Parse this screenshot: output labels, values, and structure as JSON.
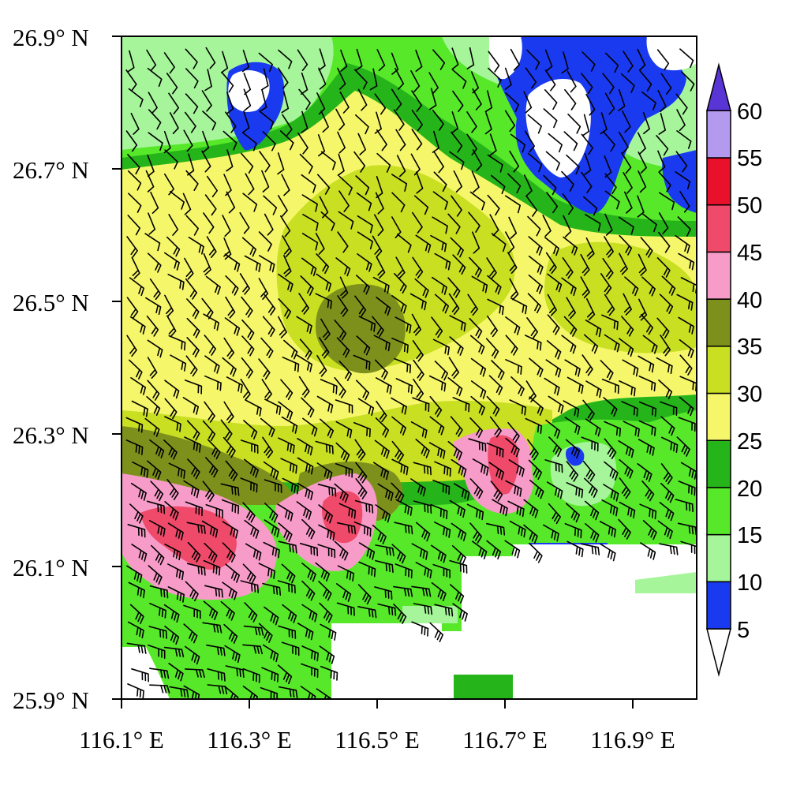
{
  "map": {
    "lat_labels": [
      "26.9° N",
      "26.7° N",
      "26.5° N",
      "26.3° N",
      "26.1° N",
      "25.9° N"
    ],
    "lon_labels": [
      "116.1° E",
      "116.3° E",
      "116.5° E",
      "116.7° E",
      "116.9° E"
    ],
    "lat_range": [
      25.9,
      26.9
    ],
    "lon_range": [
      116.1,
      117.0
    ],
    "field": "color-filled contours with wind barbs overlay",
    "barb_color": "#000000",
    "missing_color": "#ffffff"
  },
  "colorbar": {
    "labels": [
      "5",
      "10",
      "15",
      "20",
      "25",
      "30",
      "35",
      "40",
      "45",
      "50",
      "55",
      "60"
    ],
    "levels": [
      5,
      10,
      15,
      20,
      25,
      30,
      35,
      40,
      45,
      50,
      55,
      60
    ],
    "colors": [
      "#ffffff",
      "#1a3af0",
      "#a6f59a",
      "#57e82a",
      "#25b51a",
      "#f6f66a",
      "#c8df22",
      "#7e901c",
      "#f79cc8",
      "#f04a6a",
      "#e8102a",
      "#b49aef",
      "#5a35d6"
    ],
    "extends": "both"
  }
}
